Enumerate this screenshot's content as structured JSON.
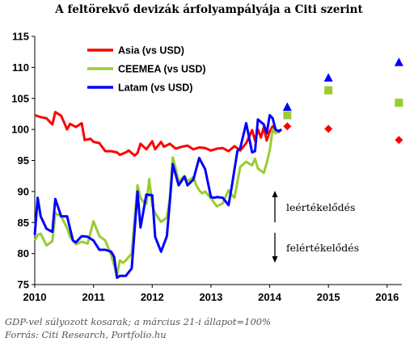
{
  "title": "A feltörekvő devizák árfolyampályája a Citi szerint",
  "footer": {
    "line1": "GDP-vel súlyozott kosarak; a március 21-i állapot=100%",
    "line2": "Forrás: Citi Research, Portfolio.hu"
  },
  "annotations": {
    "up": "leértékelődés",
    "down": "felértékelődés"
  },
  "chart_data": {
    "type": "line",
    "title": "A feltörekvő devizák árfolyampályája a Citi szerint",
    "xlabel": "",
    "ylabel": "",
    "xlim": [
      2010,
      2016.25
    ],
    "ylim": [
      75,
      115
    ],
    "y_ticks": [
      75,
      80,
      85,
      90,
      95,
      100,
      105,
      110,
      115
    ],
    "x_ticks": [
      2010,
      2011,
      2012,
      2013,
      2014,
      2015,
      2016
    ],
    "x_tick_labels": [
      "2010",
      "2011",
      "2012",
      "2013",
      "2014",
      "2015",
      "2016"
    ],
    "grid": false,
    "legend_position": "top-left",
    "series": [
      {
        "name": "Asia (vs USD)",
        "color": "#ff0000",
        "x": [
          2010.0,
          2010.1,
          2010.2,
          2010.3,
          2010.35,
          2010.45,
          2010.55,
          2010.6,
          2010.7,
          2010.8,
          2010.85,
          2010.95,
          2011.0,
          2011.1,
          2011.2,
          2011.3,
          2011.4,
          2011.45,
          2011.55,
          2011.6,
          2011.7,
          2011.75,
          2011.8,
          2011.9,
          2012.0,
          2012.05,
          2012.15,
          2012.2,
          2012.3,
          2012.4,
          2012.5,
          2012.6,
          2012.7,
          2012.8,
          2012.9,
          2013.0,
          2013.1,
          2013.2,
          2013.3,
          2013.4,
          2013.5,
          2013.6,
          2013.7,
          2013.75,
          2013.8,
          2013.85,
          2013.9,
          2013.95,
          2014.0,
          2014.05,
          2014.1,
          2014.15,
          2014.2
        ],
        "y": [
          102.3,
          102.0,
          101.8,
          100.8,
          102.8,
          102.2,
          100.0,
          100.9,
          100.4,
          101.0,
          98.3,
          98.5,
          98.0,
          97.8,
          96.5,
          96.5,
          96.3,
          95.9,
          96.3,
          96.6,
          95.8,
          96.2,
          97.7,
          96.8,
          98.1,
          96.8,
          98.0,
          97.2,
          97.7,
          96.9,
          97.2,
          97.4,
          96.8,
          97.1,
          97.0,
          96.6,
          96.9,
          97.0,
          96.5,
          97.3,
          96.6,
          97.8,
          99.9,
          98.2,
          100.0,
          98.7,
          100.4,
          98.2,
          99.7,
          100.5,
          99.8,
          99.6,
          100.0
        ]
      },
      {
        "name": "CEEMEA (vs USD)",
        "color": "#99cc33",
        "x": [
          2010.0,
          2010.05,
          2010.1,
          2010.2,
          2010.3,
          2010.35,
          2010.45,
          2010.55,
          2010.6,
          2010.7,
          2010.8,
          2010.9,
          2011.0,
          2011.1,
          2011.2,
          2011.3,
          2011.4,
          2011.45,
          2011.5,
          2011.55,
          2011.65,
          2011.75,
          2011.8,
          2011.85,
          2011.9,
          2011.95,
          2012.0,
          2012.05,
          2012.15,
          2012.25,
          2012.3,
          2012.35,
          2012.4,
          2012.45,
          2012.55,
          2012.6,
          2012.7,
          2012.75,
          2012.8,
          2012.85,
          2012.9,
          2013.0,
          2013.1,
          2013.2,
          2013.3,
          2013.35,
          2013.4,
          2013.5,
          2013.6,
          2013.7,
          2013.75,
          2013.8,
          2013.9,
          2013.95,
          2014.0,
          2014.05,
          2014.1,
          2014.15,
          2014.2
        ],
        "y": [
          82.1,
          83.0,
          83.2,
          81.3,
          82.0,
          86.5,
          86.0,
          84.1,
          82.7,
          81.5,
          81.9,
          81.6,
          85.2,
          82.8,
          82.1,
          79.8,
          76.5,
          78.9,
          78.5,
          78.9,
          80.0,
          91.0,
          89.0,
          88.3,
          88.0,
          92.0,
          87.8,
          86.5,
          85.1,
          85.8,
          89.0,
          95.5,
          93.7,
          91.6,
          92.5,
          91.6,
          92.3,
          91.0,
          90.2,
          89.7,
          90.0,
          88.9,
          87.6,
          88.1,
          90.2,
          89.5,
          89.0,
          94.0,
          94.8,
          94.2,
          95.3,
          93.7,
          93.0,
          94.6,
          96.6,
          100.0,
          99.4,
          99.8,
          100.0
        ]
      },
      {
        "name": "Latam (vs USD)",
        "color": "#0000ff",
        "x": [
          2010.0,
          2010.05,
          2010.1,
          2010.2,
          2010.3,
          2010.35,
          2010.45,
          2010.55,
          2010.65,
          2010.7,
          2010.8,
          2010.9,
          2011.0,
          2011.1,
          2011.2,
          2011.3,
          2011.35,
          2011.4,
          2011.45,
          2011.55,
          2011.65,
          2011.75,
          2011.8,
          2011.9,
          2012.0,
          2012.05,
          2012.15,
          2012.25,
          2012.3,
          2012.35,
          2012.45,
          2012.55,
          2012.6,
          2012.7,
          2012.8,
          2012.9,
          2013.0,
          2013.05,
          2013.1,
          2013.2,
          2013.3,
          2013.35,
          2013.45,
          2013.5,
          2013.6,
          2013.7,
          2013.75,
          2013.8,
          2013.9,
          2013.95,
          2014.0,
          2014.05,
          2014.1,
          2014.15,
          2014.2
        ],
        "y": [
          83.0,
          89.0,
          86.0,
          84.0,
          83.5,
          88.8,
          86.0,
          86.0,
          82.1,
          81.8,
          82.8,
          82.7,
          82.1,
          80.6,
          80.6,
          80.3,
          79.5,
          76.1,
          76.4,
          76.4,
          77.6,
          90.0,
          84.2,
          89.5,
          89.4,
          82.7,
          80.3,
          82.8,
          88.4,
          94.4,
          91.0,
          92.4,
          91.0,
          91.9,
          95.4,
          93.6,
          89.1,
          89.0,
          89.1,
          89.0,
          87.8,
          90.5,
          96.5,
          97.0,
          101.0,
          96.3,
          96.5,
          101.6,
          100.8,
          99.4,
          102.3,
          101.8,
          100.0,
          99.7,
          100.0
        ]
      }
    ],
    "forecasts": [
      {
        "series": "Asia (vs USD)",
        "marker": "diamond",
        "x": [
          2014.3,
          2015.0,
          2016.2
        ],
        "y": [
          100.5,
          100.1,
          98.3
        ]
      },
      {
        "series": "CEEMEA (vs USD)",
        "marker": "square",
        "x": [
          2014.3,
          2015.0,
          2016.2
        ],
        "y": [
          102.3,
          106.3,
          104.3
        ]
      },
      {
        "series": "Latam (vs USD)",
        "marker": "triangle",
        "x": [
          2014.3,
          2015.0,
          2016.2
        ],
        "y": [
          103.6,
          108.3,
          110.8
        ]
      }
    ]
  }
}
